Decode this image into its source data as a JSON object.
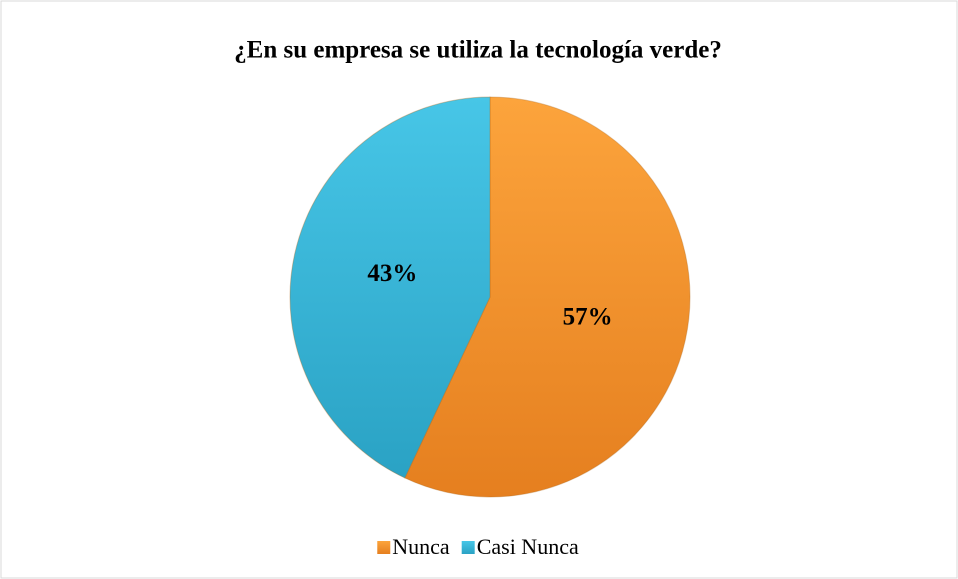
{
  "chart_data": {
    "type": "pie",
    "title": "¿En su empresa se utiliza la tecnología verde?",
    "categories": [
      "Nunca",
      "Casi Nunca"
    ],
    "values": [
      57,
      43
    ],
    "value_labels": [
      "57%",
      "43%"
    ],
    "colors": [
      "#f7941d",
      "#31b5d6"
    ],
    "legend": "bottom"
  }
}
